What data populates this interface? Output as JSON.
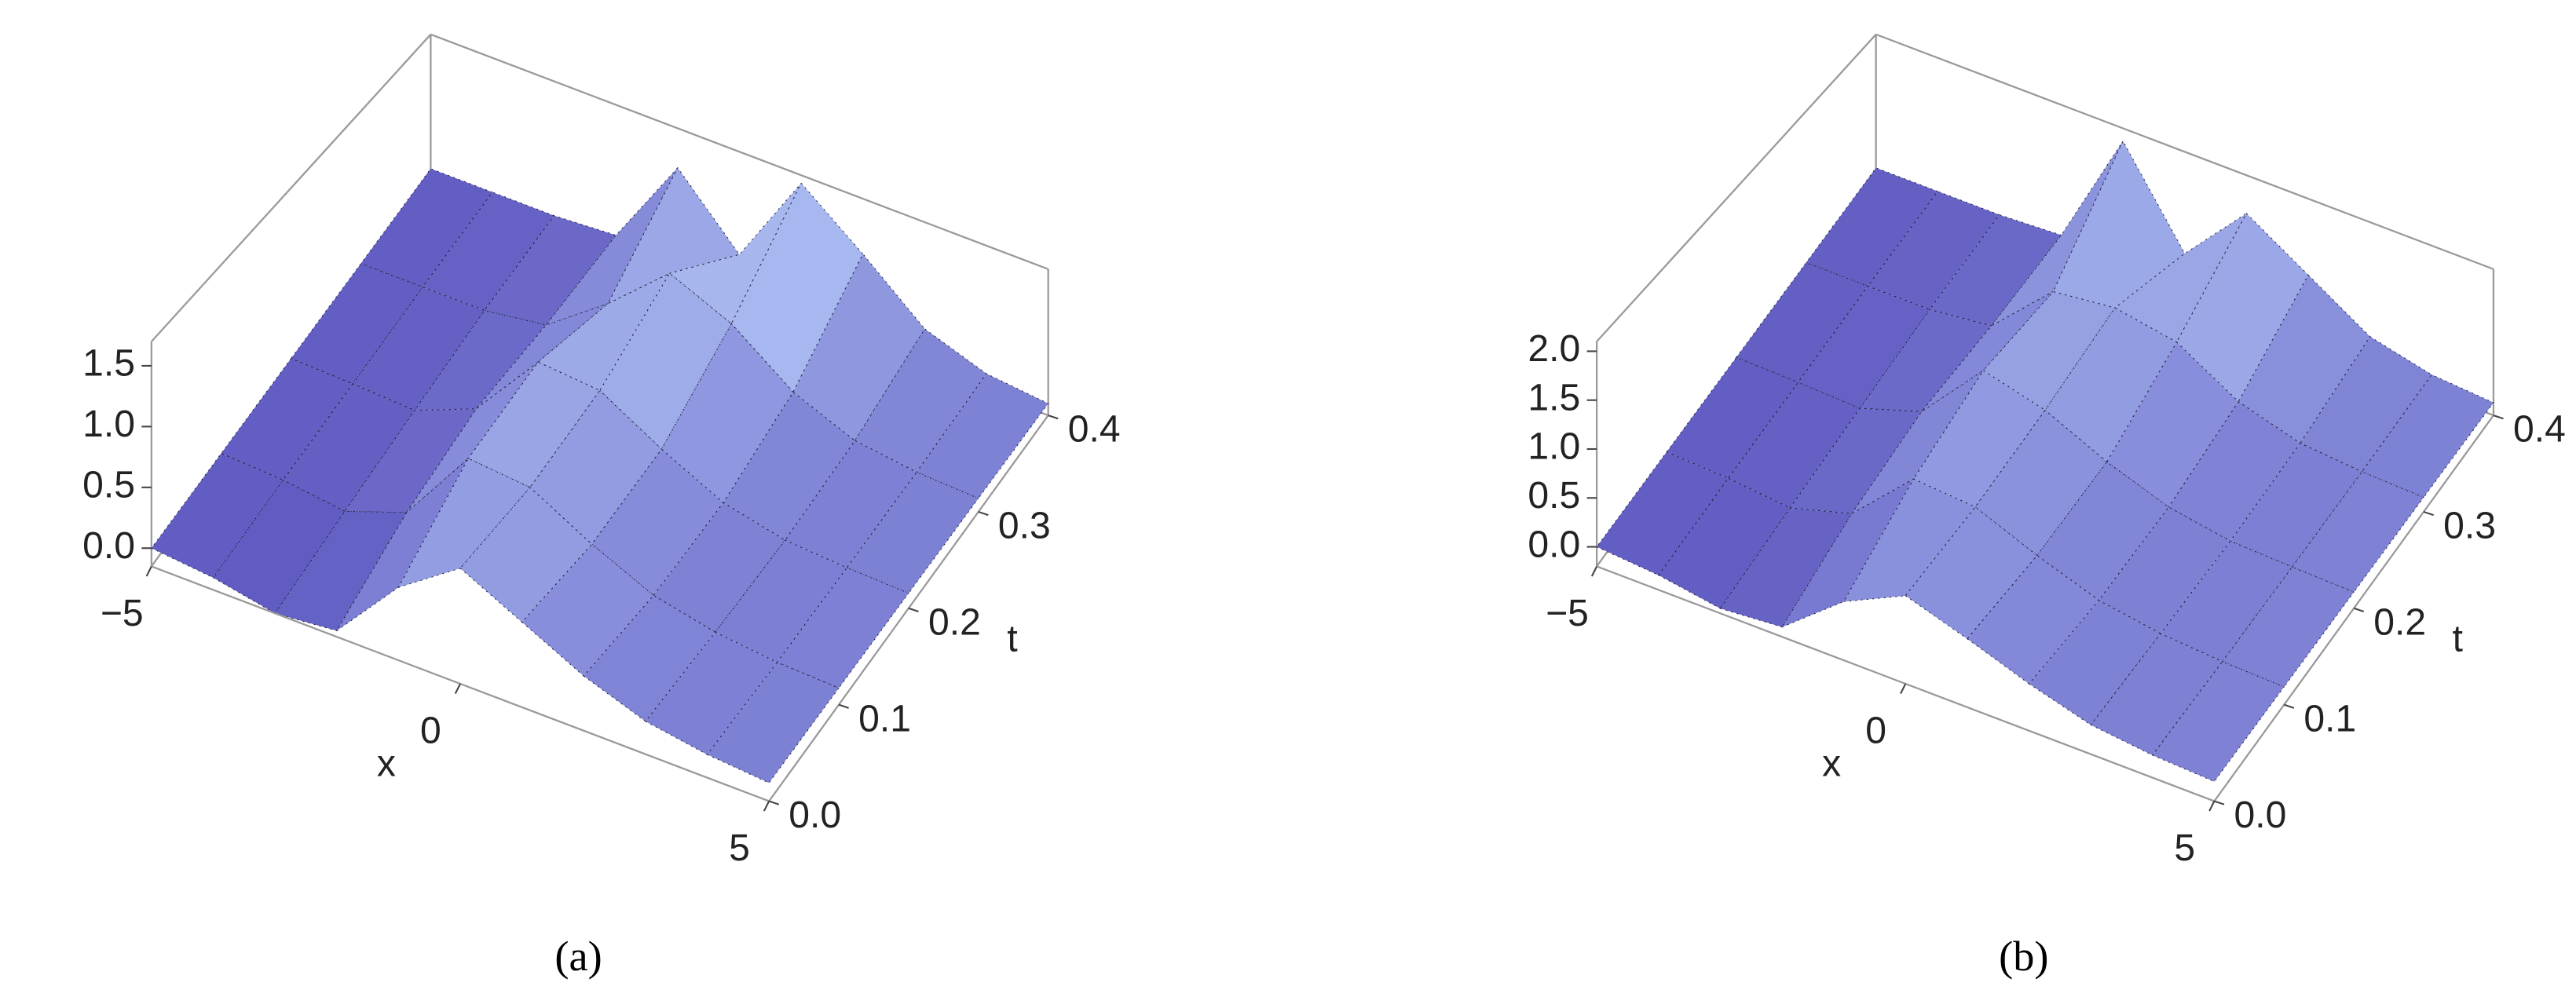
{
  "chart_data": [
    {
      "type": "surface",
      "caption": "(a)",
      "xlabel": "x",
      "ylabel": "t",
      "xlim": [
        -5,
        5
      ],
      "xticks": [
        {
          "value": -5,
          "label": "−5"
        },
        0,
        5
      ],
      "ylim": [
        0,
        0.4
      ],
      "yticks": [
        {
          "value": 0,
          "label": "0.0"
        },
        0.1,
        0.2,
        0.3,
        0.4
      ],
      "zlim": [
        -0.15,
        1.7
      ],
      "zticks": [
        {
          "value": 0,
          "label": "0.0"
        },
        0.5,
        {
          "value": 1,
          "label": "1.0"
        },
        1.5
      ],
      "x": [
        -5,
        -4,
        -3,
        -2,
        -1,
        0,
        1,
        2,
        3,
        4,
        5
      ],
      "t": [
        0,
        0.1,
        0.2,
        0.3,
        0.4
      ],
      "z": [
        [
          0,
          -0.05,
          -0.15,
          -0.1,
          0.45,
          0.8,
          0.55,
          0.3,
          0.12,
          0.04,
          0
        ],
        [
          0,
          -0.03,
          -0.1,
          0.1,
          0.8,
          0.75,
          0.45,
          0.2,
          0.08,
          0.02,
          0
        ],
        [
          0,
          -0.02,
          -0.05,
          0.2,
          0.9,
          0.85,
          0.5,
          0.2,
          0.06,
          0.02,
          0
        ],
        [
          0,
          0,
          0,
          0.1,
          0.6,
          1.2,
          0.9,
          0.4,
          0.12,
          0.03,
          0
        ],
        [
          0,
          0,
          0,
          0.05,
          1.2,
          0.4,
          1.6,
          1.0,
          0.35,
          0.08,
          0
        ]
      ],
      "colors": [
        "#4a3eb3",
        "#bcd2fc"
      ]
    },
    {
      "type": "surface",
      "caption": "(b)",
      "xlabel": "x",
      "ylabel": "t",
      "xlim": [
        -5,
        5
      ],
      "xticks": [
        {
          "value": -5,
          "label": "−5"
        },
        0,
        5
      ],
      "ylim": [
        0,
        0.4
      ],
      "yticks": [
        {
          "value": 0,
          "label": "0.0"
        },
        0.1,
        0.2,
        0.3,
        0.4
      ],
      "zlim": [
        -0.2,
        2.1
      ],
      "zticks": [
        {
          "value": 0,
          "label": "0.0"
        },
        0.5,
        {
          "value": 1,
          "label": "1.0"
        },
        1.5,
        {
          "value": 2,
          "label": "2.0"
        }
      ],
      "x": [
        -5,
        -4,
        -3,
        -2,
        -1,
        0,
        1,
        2,
        3,
        4,
        5
      ],
      "t": [
        0,
        0.1,
        0.2,
        0.3,
        0.4
      ],
      "z": [
        [
          0,
          -0.05,
          -0.15,
          -0.1,
          0.4,
          0.7,
          0.5,
          0.28,
          0.1,
          0.03,
          0
        ],
        [
          0,
          -0.03,
          -0.1,
          0.1,
          0.75,
          0.7,
          0.42,
          0.18,
          0.07,
          0.02,
          0
        ],
        [
          0,
          -0.02,
          -0.05,
          0.2,
          1.0,
          0.8,
          0.45,
          0.18,
          0.05,
          0.02,
          0
        ],
        [
          0,
          0,
          0,
          0.1,
          0.9,
          1.0,
          0.85,
          0.35,
          0.1,
          0.03,
          0
        ],
        [
          0,
          0,
          0,
          0.05,
          1.9,
          0.5,
          1.5,
          0.9,
          0.3,
          0.07,
          0
        ]
      ],
      "colors": [
        "#4a3eb3",
        "#bcd2fc"
      ]
    }
  ]
}
